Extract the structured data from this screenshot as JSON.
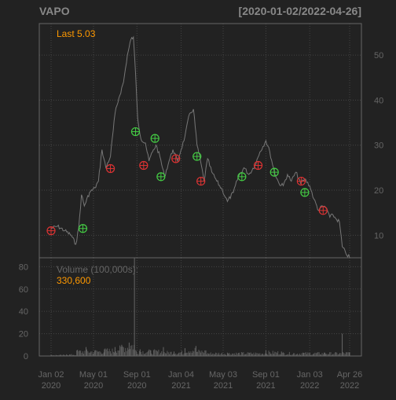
{
  "chart_data": {
    "type": "line",
    "title": "VAPO",
    "date_range_label": "[2020-01-02/2022-04-26]",
    "last_label": "Last 5.03",
    "volume_label": "Volume (100,000s):",
    "volume_last_label": "330,600",
    "price_axis": {
      "min": 5,
      "max": 57,
      "ticks": [
        10,
        20,
        30,
        40,
        50
      ]
    },
    "volume_axis": {
      "min": 0,
      "max": 88,
      "ticks": [
        0,
        20,
        40,
        60,
        80
      ]
    },
    "x_axis": {
      "start": "2020-01-02",
      "end": "2022-04-26",
      "ticks": [
        {
          "date": "2020-01-02",
          "label1": "Jan 02",
          "label2": "2020"
        },
        {
          "date": "2020-05-01",
          "label1": "May 01",
          "label2": "2020"
        },
        {
          "date": "2020-09-01",
          "label1": "Sep 01",
          "label2": "2020"
        },
        {
          "date": "2021-01-04",
          "label1": "Jan 04",
          "label2": "2021"
        },
        {
          "date": "2021-05-03",
          "label1": "May 03",
          "label2": "2021"
        },
        {
          "date": "2021-09-01",
          "label1": "Sep 01",
          "label2": "2021"
        },
        {
          "date": "2022-01-03",
          "label1": "Jan 03",
          "label2": "2022"
        },
        {
          "date": "2022-04-26",
          "label1": "Apr 26",
          "label2": "2022"
        }
      ]
    },
    "price_series": [
      [
        "2020-01-02",
        11.5
      ],
      [
        "2020-01-20",
        12.0
      ],
      [
        "2020-02-10",
        11.0
      ],
      [
        "2020-02-28",
        10.0
      ],
      [
        "2020-03-12",
        8.0
      ],
      [
        "2020-03-20",
        11.5
      ],
      [
        "2020-03-28",
        19.0
      ],
      [
        "2020-04-05",
        16.5
      ],
      [
        "2020-04-20",
        19.5
      ],
      [
        "2020-05-05",
        20.5
      ],
      [
        "2020-05-15",
        22.0
      ],
      [
        "2020-05-25",
        29.0
      ],
      [
        "2020-06-05",
        25.0
      ],
      [
        "2020-06-18",
        27.5
      ],
      [
        "2020-07-01",
        37.0
      ],
      [
        "2020-07-12",
        40.5
      ],
      [
        "2020-07-25",
        44.0
      ],
      [
        "2020-08-05",
        50.0
      ],
      [
        "2020-08-15",
        53.5
      ],
      [
        "2020-08-22",
        54.0
      ],
      [
        "2020-08-28",
        46.0
      ],
      [
        "2020-09-03",
        36.0
      ],
      [
        "2020-09-12",
        31.5
      ],
      [
        "2020-09-25",
        30.5
      ],
      [
        "2020-10-05",
        26.5
      ],
      [
        "2020-10-15",
        28.5
      ],
      [
        "2020-10-25",
        30.0
      ],
      [
        "2020-11-05",
        27.5
      ],
      [
        "2020-11-18",
        23.0
      ],
      [
        "2020-12-01",
        26.5
      ],
      [
        "2020-12-12",
        29.0
      ],
      [
        "2020-12-25",
        26.5
      ],
      [
        "2021-01-04",
        29.0
      ],
      [
        "2021-01-15",
        32.0
      ],
      [
        "2021-01-28",
        37.0
      ],
      [
        "2021-02-08",
        38.0
      ],
      [
        "2021-02-18",
        30.0
      ],
      [
        "2021-02-28",
        26.5
      ],
      [
        "2021-03-10",
        22.0
      ],
      [
        "2021-03-20",
        27.0
      ],
      [
        "2021-04-01",
        24.0
      ],
      [
        "2021-04-15",
        22.0
      ],
      [
        "2021-05-01",
        20.0
      ],
      [
        "2021-05-15",
        17.5
      ],
      [
        "2021-06-01",
        19.5
      ],
      [
        "2021-06-15",
        23.0
      ],
      [
        "2021-07-01",
        25.0
      ],
      [
        "2021-07-15",
        23.5
      ],
      [
        "2021-08-01",
        25.5
      ],
      [
        "2021-08-15",
        28.5
      ],
      [
        "2021-09-01",
        31.0
      ],
      [
        "2021-09-12",
        28.5
      ],
      [
        "2021-09-25",
        24.0
      ],
      [
        "2021-10-08",
        21.5
      ],
      [
        "2021-10-20",
        21.0
      ],
      [
        "2021-11-01",
        23.5
      ],
      [
        "2021-11-12",
        22.0
      ],
      [
        "2021-11-25",
        24.0
      ],
      [
        "2021-12-08",
        21.5
      ],
      [
        "2021-12-20",
        22.5
      ],
      [
        "2022-01-03",
        21.0
      ],
      [
        "2022-01-15",
        18.0
      ],
      [
        "2022-01-28",
        15.5
      ],
      [
        "2022-02-08",
        16.5
      ],
      [
        "2022-02-20",
        16.0
      ],
      [
        "2022-03-01",
        14.0
      ],
      [
        "2022-03-10",
        14.5
      ],
      [
        "2022-03-20",
        13.5
      ],
      [
        "2022-03-28",
        13.0
      ],
      [
        "2022-04-05",
        7.5
      ],
      [
        "2022-04-15",
        6.0
      ],
      [
        "2022-04-26",
        5.03
      ]
    ],
    "volume_series": [
      [
        "2020-01-02",
        1
      ],
      [
        "2020-02-15",
        1.5
      ],
      [
        "2020-03-15",
        5
      ],
      [
        "2020-04-10",
        8
      ],
      [
        "2020-05-05",
        5
      ],
      [
        "2020-06-01",
        6
      ],
      [
        "2020-07-01",
        8
      ],
      [
        "2020-07-20",
        10
      ],
      [
        "2020-08-10",
        12
      ],
      [
        "2020-08-25",
        88
      ],
      [
        "2020-09-10",
        6
      ],
      [
        "2020-10-10",
        5
      ],
      [
        "2020-11-15",
        8
      ],
      [
        "2020-12-15",
        4
      ],
      [
        "2021-01-15",
        7
      ],
      [
        "2021-02-15",
        9
      ],
      [
        "2021-03-15",
        5
      ],
      [
        "2021-05-15",
        3
      ],
      [
        "2021-07-15",
        3
      ],
      [
        "2021-09-01",
        5
      ],
      [
        "2021-10-15",
        4
      ],
      [
        "2021-12-15",
        3
      ],
      [
        "2022-02-15",
        3
      ],
      [
        "2022-04-05",
        20
      ],
      [
        "2022-04-26",
        3.3
      ]
    ],
    "buy_markers": [
      [
        "2020-04-01",
        11.5
      ],
      [
        "2020-08-28",
        33.0
      ],
      [
        "2020-10-22",
        31.5
      ],
      [
        "2020-11-08",
        23.0
      ],
      [
        "2021-02-18",
        27.5
      ],
      [
        "2021-06-25",
        23.0
      ],
      [
        "2021-09-25",
        24.0
      ],
      [
        "2021-12-20",
        19.5
      ]
    ],
    "sell_markers": [
      [
        "2020-01-02",
        11.0
      ],
      [
        "2020-06-18",
        24.8
      ],
      [
        "2020-09-20",
        25.5
      ],
      [
        "2020-12-20",
        27.0
      ],
      [
        "2021-03-01",
        22.0
      ],
      [
        "2021-08-10",
        25.5
      ],
      [
        "2021-12-10",
        22.0
      ],
      [
        "2022-02-10",
        15.5
      ]
    ],
    "colors": {
      "background": "#222222",
      "panel_border": "#666666",
      "grid": "#444444",
      "axis_text": "#666666",
      "title_text": "#888888",
      "price_line": "#777777",
      "volume_bars": "#666666",
      "accent": "#ff9900",
      "buy": "#44cc44",
      "sell": "#dd3333"
    },
    "grid": true
  }
}
